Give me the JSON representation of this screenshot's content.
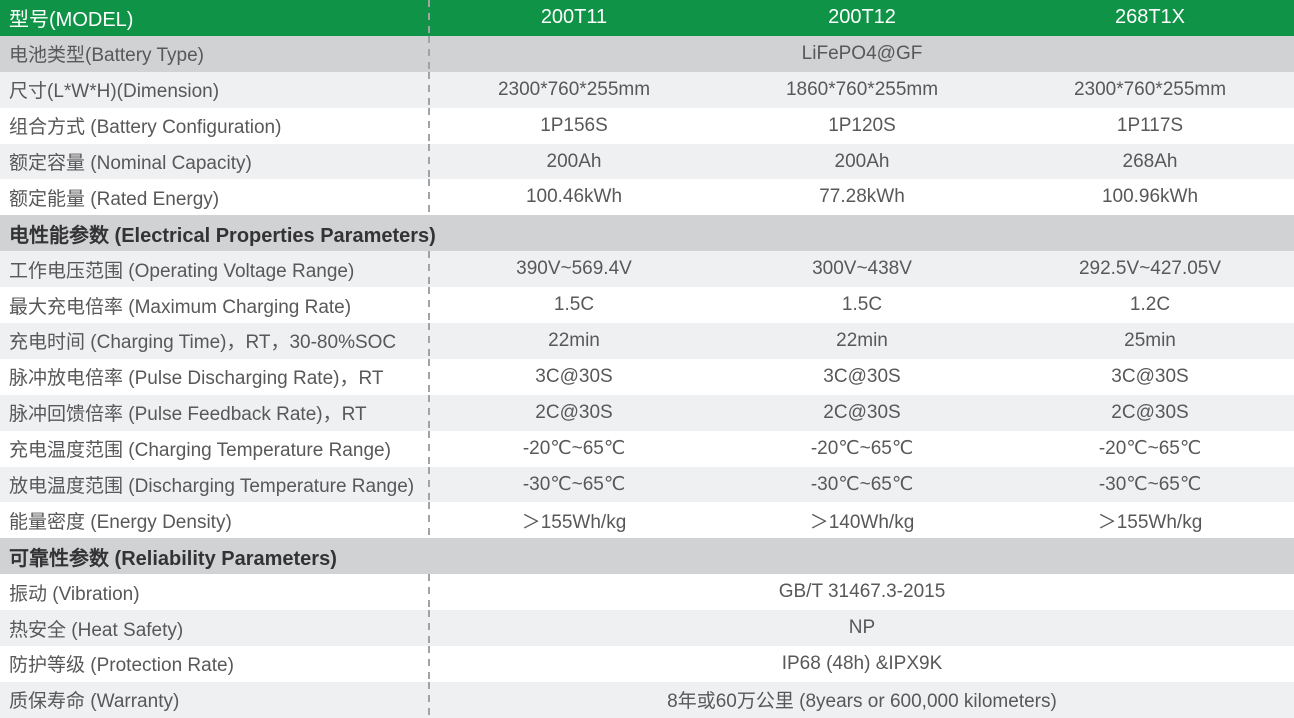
{
  "colors": {
    "header_green": "#0f9347",
    "section_gray": "#d1d2d4",
    "row_light_gray": "#eff0f2",
    "row_white": "#ffffff",
    "divider_gray": "#a2a3a5",
    "label_text": "#58585a",
    "header_text": "#ffffff"
  },
  "header": {
    "model_label": "型号(MODEL)",
    "models": [
      "200T11",
      "200T12",
      "268T1X"
    ]
  },
  "sections": {
    "electrical": "电性能参数 (Electrical Properties Parameters)",
    "reliability": "可靠性参数 (Reliability Parameters)"
  },
  "rows": {
    "battery_type": {
      "label": "电池类型(Battery Type)",
      "value": "LiFePO4@GF"
    },
    "dimension": {
      "label": "尺寸(L*W*H)(Dimension)",
      "values": [
        "2300*760*255mm",
        "1860*760*255mm",
        "2300*760*255mm"
      ]
    },
    "configuration": {
      "label": "组合方式 (Battery Configuration)",
      "values": [
        "1P156S",
        "1P120S",
        "1P117S"
      ]
    },
    "nominal_capacity": {
      "label": "额定容量 (Nominal Capacity)",
      "values": [
        "200Ah",
        "200Ah",
        "268Ah"
      ]
    },
    "rated_energy": {
      "label": "额定能量 (Rated Energy)",
      "values": [
        "100.46kWh",
        "77.28kWh",
        "100.96kWh"
      ]
    },
    "operating_voltage": {
      "label": "工作电压范围 (Operating Voltage Range)",
      "values": [
        "390V~569.4V",
        "300V~438V",
        "292.5V~427.05V"
      ]
    },
    "max_charging_rate": {
      "label": "最大充电倍率 (Maximum Charging Rate)",
      "values": [
        "1.5C",
        "1.5C",
        "1.2C"
      ]
    },
    "charging_time": {
      "label": "充电时间 (Charging Time)，RT，30-80%SOC",
      "values": [
        "22min",
        "22min",
        "25min"
      ]
    },
    "pulse_discharging": {
      "label": "脉冲放电倍率 (Pulse Discharging Rate)，RT",
      "values": [
        "3C@30S",
        "3C@30S",
        "3C@30S"
      ]
    },
    "pulse_feedback": {
      "label": "脉冲回馈倍率 (Pulse Feedback Rate)，RT",
      "values": [
        "2C@30S",
        "2C@30S",
        "2C@30S"
      ]
    },
    "charging_temp": {
      "label": "充电温度范围 (Charging Temperature Range)",
      "values": [
        "-20℃~65℃",
        "-20℃~65℃",
        "-20℃~65℃"
      ]
    },
    "discharging_temp": {
      "label": "放电温度范围 (Discharging Temperature Range)",
      "values": [
        "-30℃~65℃",
        "-30℃~65℃",
        "-30℃~65℃"
      ]
    },
    "energy_density": {
      "label": "能量密度 (Energy Density)",
      "values": [
        "＞155Wh/kg",
        "＞140Wh/kg",
        "＞155Wh/kg"
      ]
    },
    "vibration": {
      "label": "振动 (Vibration)",
      "value": "GB/T 31467.3-2015"
    },
    "heat_safety": {
      "label": "热安全 (Heat Safety)",
      "value": "NP"
    },
    "protection": {
      "label": "防护等级 (Protection Rate)",
      "value": "IP68 (48h) &IPX9K"
    },
    "warranty": {
      "label": "质保寿命 (Warranty)",
      "value": "8年或60万公里 (8years  or 600,000 kilometers)"
    }
  }
}
